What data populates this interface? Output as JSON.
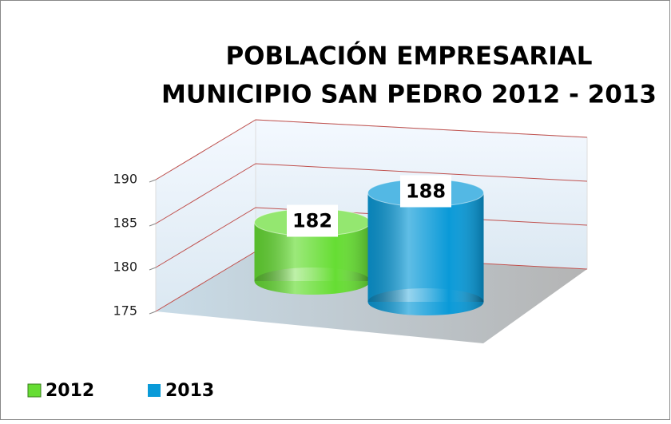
{
  "chart_data": {
    "type": "bar",
    "title": [
      "POBLACIÓN EMPRESARIAL",
      "MUNICIPIO SAN PEDRO   2012 - 2013"
    ],
    "categories": [
      null
    ],
    "series": [
      {
        "name": "2012",
        "color": "#66dd33",
        "values": [
          182
        ]
      },
      {
        "name": "2013",
        "color": "#0a9ad8",
        "values": [
          188
        ]
      }
    ],
    "ylim": [
      175,
      190
    ],
    "yticks": [
      175,
      180,
      185,
      190
    ],
    "grid": true,
    "legend": "bottom-left"
  }
}
